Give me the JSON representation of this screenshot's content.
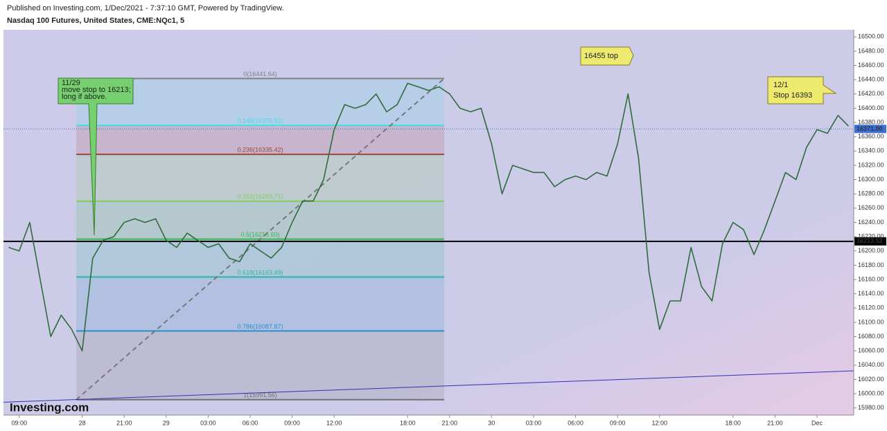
{
  "header": {
    "published": "Published on Investing.com, 1/Dec/2021 - 7:37:10 GMT, Powered by TradingView.",
    "logo": "Investing.com"
  },
  "annotations": [
    {
      "lines": [
        "11/29",
        "move stop to 16213;",
        "long if above."
      ]
    },
    {
      "lines": [
        "16455 top"
      ]
    },
    {
      "lines": [
        "12/1",
        "Stop 16393"
      ]
    }
  ],
  "chart_data": {
    "type": "line",
    "title": "Nasdaq 100 Futures, United States, CME:NQc1, 5",
    "color": "#2e6b3a",
    "categories": [
      null,
      "09:00",
      null,
      null,
      null,
      null,
      null,
      "28",
      null,
      null,
      null,
      "21:00",
      null,
      null,
      null,
      "29",
      null,
      null,
      null,
      "03:00",
      null,
      null,
      null,
      "06:00",
      null,
      null,
      null,
      "09:00",
      null,
      null,
      null,
      "12:00",
      null,
      null,
      null,
      null,
      null,
      null,
      "18:00",
      null,
      null,
      null,
      "21:00",
      null,
      null,
      null,
      "30",
      null,
      null,
      null,
      "03:00",
      null,
      null,
      null,
      "06:00",
      null,
      null,
      null,
      "09:00",
      null,
      null,
      null,
      "12:00",
      null,
      null,
      null,
      null,
      null,
      null,
      "18:00",
      null,
      null,
      null,
      "21:00",
      null,
      null,
      null,
      "Dec",
      null,
      null,
      null
    ],
    "values": [
      16205,
      16200,
      16240,
      16160,
      16080,
      16110,
      16090,
      16060,
      16190,
      16215,
      16220,
      16240,
      16245,
      16240,
      16245,
      16215,
      16205,
      16225,
      16215,
      16205,
      16210,
      16190,
      16185,
      16210,
      16200,
      16190,
      16205,
      16240,
      16270,
      16270,
      16300,
      16370,
      16405,
      16400,
      16405,
      16420,
      16395,
      16405,
      16435,
      16430,
      16425,
      16430,
      16420,
      16400,
      16395,
      16400,
      16350,
      16280,
      16320,
      16315,
      16310,
      16310,
      16290,
      16300,
      16305,
      16300,
      16310,
      16305,
      16350,
      16420,
      16330,
      16170,
      16090,
      16130,
      16130,
      16205,
      16150,
      16130,
      16210,
      16240,
      16230,
      16195,
      16230,
      16270,
      16310,
      16300,
      16345,
      16370,
      16365,
      16390,
      16375
    ],
    "ylim": [
      15970,
      16510
    ],
    "yticks": [
      {
        "value": 15980,
        "label": "15980.00"
      },
      {
        "value": 16000,
        "label": "16000.00"
      },
      {
        "value": 16020,
        "label": "16020.00"
      },
      {
        "value": 16040,
        "label": "16040.00"
      },
      {
        "value": 16060,
        "label": "16060.00"
      },
      {
        "value": 16080,
        "label": "16080.00"
      },
      {
        "value": 16100,
        "label": "16100.00"
      },
      {
        "value": 16120,
        "label": "16120.00"
      },
      {
        "value": 16140,
        "label": "16140.00"
      },
      {
        "value": 16160,
        "label": "16160.00"
      },
      {
        "value": 16180,
        "label": "16180.00"
      },
      {
        "value": 16200,
        "label": "16200.00"
      },
      {
        "value": 16220,
        "label": "16220.00"
      },
      {
        "value": 16240,
        "label": "16240.00"
      },
      {
        "value": 16260,
        "label": "16260.00"
      },
      {
        "value": 16280,
        "label": "16280.00"
      },
      {
        "value": 16300,
        "label": "16300.00"
      },
      {
        "value": 16320,
        "label": "16320.00"
      },
      {
        "value": 16340,
        "label": "16340.00"
      },
      {
        "value": 16360,
        "label": "16360.00"
      },
      {
        "value": 16380,
        "label": "16380.00"
      },
      {
        "value": 16400,
        "label": "16400.00"
      },
      {
        "value": 16420,
        "label": "16420.00"
      },
      {
        "value": 16440,
        "label": "16440.00"
      },
      {
        "value": 16460,
        "label": "16460.00"
      },
      {
        "value": 16480,
        "label": "16480.00"
      },
      {
        "value": 16500,
        "label": "16500.00"
      }
    ],
    "fib_levels": [
      {
        "value": 16441.64,
        "label": "0(16441.64)",
        "color": "#808080"
      },
      {
        "value": 16375.93,
        "label": "0.146(16375.93)",
        "color": "#3fe0e8"
      },
      {
        "value": 16335.42,
        "label": "0.236(16335.42)",
        "color": "#a0453a"
      },
      {
        "value": 16269.71,
        "label": "0.382(16269.71)",
        "color": "#7ed05a"
      },
      {
        "value": 16216.6,
        "label": "0.5(16216.60)",
        "color": "#35b84a"
      },
      {
        "value": 16163.49,
        "label": "0.618(16163.49)",
        "color": "#28b8a0"
      },
      {
        "value": 16087.87,
        "label": "0.786(16087.87)",
        "color": "#2a8fc8"
      },
      {
        "value": 15991.56,
        "label": "1(15991.56)",
        "color": "#707070"
      }
    ],
    "price_lines": [
      {
        "value": 16371,
        "label": "16371.00",
        "color": "#3a6fd8"
      },
      {
        "value": 16213.52,
        "label": "16213.52",
        "color": "#000000"
      }
    ],
    "trend_line": {
      "values": [
        15988,
        16032
      ],
      "color": "#3030b0"
    }
  }
}
